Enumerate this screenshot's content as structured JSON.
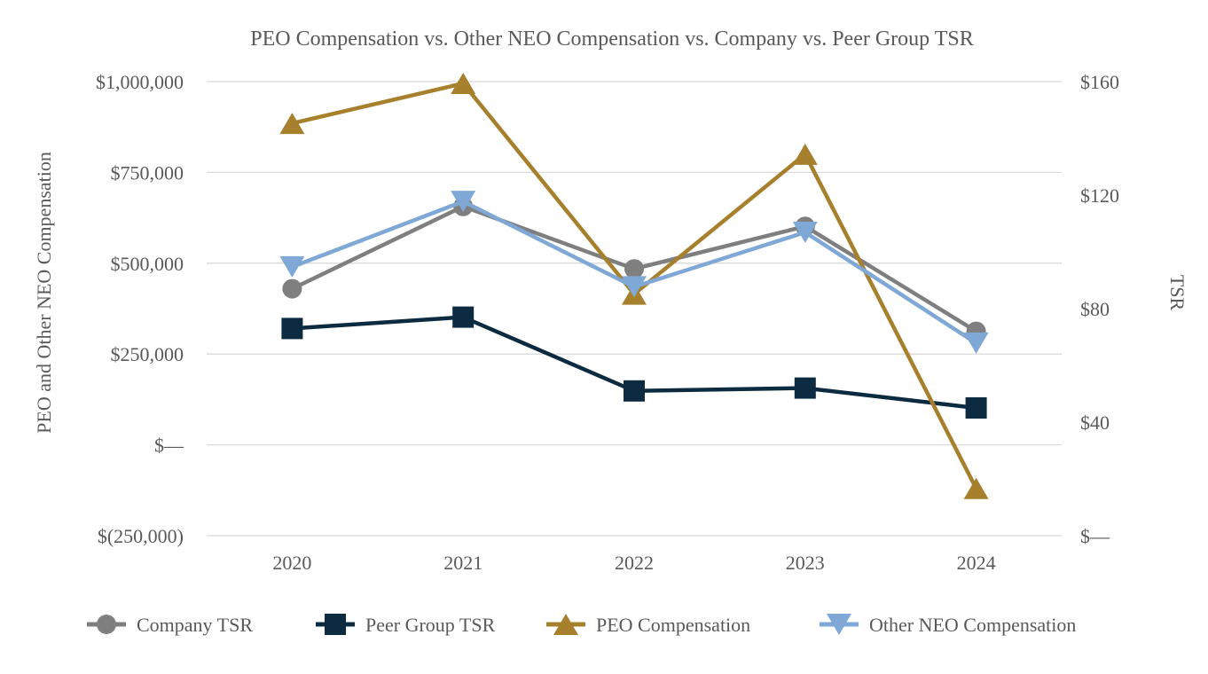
{
  "chart_data": {
    "type": "line",
    "title": "PEO Compensation vs. Other NEO Compensation vs. Company vs. Peer Group TSR",
    "categories": [
      "2020",
      "2021",
      "2022",
      "2023",
      "2024"
    ],
    "left_axis": {
      "label": "PEO and Other NEO Compensation",
      "min": -250000,
      "max": 1000000,
      "ticks": [
        {
          "value": 1000000,
          "label": "$1,000,000"
        },
        {
          "value": 750000,
          "label": "$750,000"
        },
        {
          "value": 500000,
          "label": "$500,000"
        },
        {
          "value": 250000,
          "label": "$250,000"
        },
        {
          "value": 0,
          "label": "$—"
        },
        {
          "value": -250000,
          "label": "$(250,000)"
        }
      ]
    },
    "right_axis": {
      "label": "TSR",
      "min": 0,
      "max": 160,
      "ticks": [
        {
          "value": 160,
          "label": "$160"
        },
        {
          "value": 120,
          "label": "$120"
        },
        {
          "value": 80,
          "label": "$80"
        },
        {
          "value": 40,
          "label": "$40"
        },
        {
          "value": 0,
          "label": "$—"
        }
      ]
    },
    "series": [
      {
        "name": "Company TSR",
        "axis": "right",
        "marker": "circle",
        "color": "#7F7F7F",
        "values": [
          87,
          116,
          94,
          109,
          72
        ]
      },
      {
        "name": "Peer Group TSR",
        "axis": "right",
        "marker": "square",
        "color": "#0D2B40",
        "values": [
          73,
          77,
          51,
          52,
          45
        ]
      },
      {
        "name": "PEO Compensation",
        "axis": "left",
        "marker": "triangle-up",
        "color": "#A6802C",
        "values": [
          885000,
          995000,
          415000,
          800000,
          -120000
        ]
      },
      {
        "name": "Other NEO Compensation",
        "axis": "left",
        "marker": "triangle-down",
        "color": "#7FA8D6",
        "values": [
          490000,
          670000,
          435000,
          585000,
          280000
        ]
      }
    ],
    "legend_position": "bottom",
    "grid": "horizontal",
    "colors": {
      "text": "#595959",
      "gridline": "#D9D9D9",
      "background": "#FFFFFF"
    }
  }
}
